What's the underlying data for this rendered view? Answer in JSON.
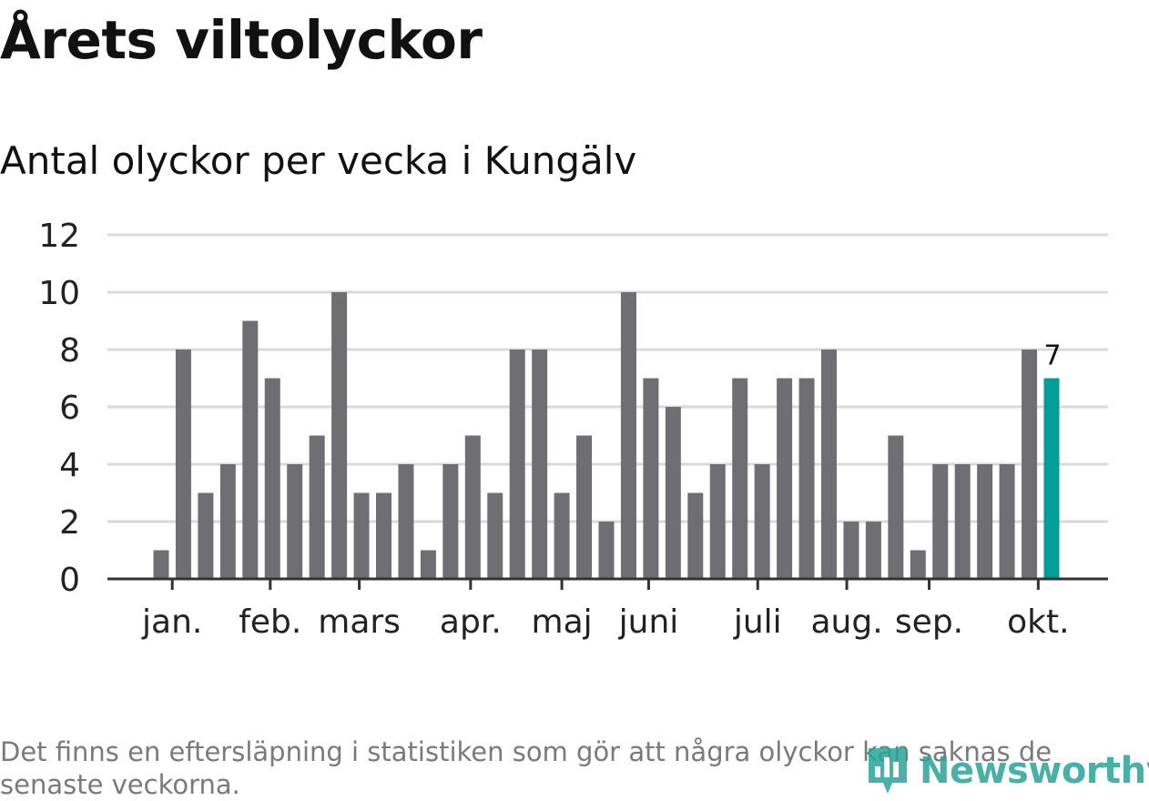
{
  "header": {
    "title": "Årets viltolyckor",
    "subtitle": "Antal olyckor per vecka i Kungälv"
  },
  "footer": {
    "note": "Det finns en eftersläpning i statistiken som gör att några olyckor kan saknas de senaste veckorna.",
    "brand": "Newsworthy",
    "brand_icon": "bar-chart-pin-icon"
  },
  "colors": {
    "bar": "#6f6e73",
    "highlight": "#009e96",
    "grid": "#d9d9d9",
    "axis": "#333333",
    "brand": "#2aa39a"
  },
  "chart_data": {
    "type": "bar",
    "x": [
      1,
      2,
      3,
      4,
      5,
      6,
      7,
      8,
      9,
      10,
      11,
      12,
      13,
      14,
      15,
      16,
      17,
      18,
      19,
      20,
      21,
      22,
      23,
      24,
      25,
      26,
      27,
      28,
      29,
      30,
      31,
      32,
      33,
      34,
      35,
      36,
      37,
      38,
      39,
      40,
      41
    ],
    "values": [
      1,
      8,
      3,
      4,
      9,
      7,
      4,
      5,
      10,
      3,
      3,
      4,
      1,
      4,
      5,
      3,
      8,
      8,
      3,
      5,
      2,
      10,
      7,
      6,
      3,
      4,
      7,
      4,
      7,
      7,
      8,
      2,
      2,
      5,
      1,
      4,
      4,
      4,
      4,
      8,
      7
    ],
    "highlight_index": 40,
    "highlight_label": "7",
    "ylim": [
      0,
      12
    ],
    "yticks": [
      0,
      2,
      4,
      6,
      8,
      10,
      12
    ],
    "month_ticks": [
      {
        "label": "jan.",
        "week": 1.5
      },
      {
        "label": "feb.",
        "week": 5.9
      },
      {
        "label": "mars",
        "week": 9.9
      },
      {
        "label": "apr.",
        "week": 14.9
      },
      {
        "label": "maj",
        "week": 19.0
      },
      {
        "label": "juni",
        "week": 22.9
      },
      {
        "label": "juli",
        "week": 27.8
      },
      {
        "label": "aug.",
        "week": 31.8
      },
      {
        "label": "sep.",
        "week": 35.5
      },
      {
        "label": "okt.",
        "week": 40.4
      }
    ],
    "grid": true,
    "legend": "none"
  }
}
